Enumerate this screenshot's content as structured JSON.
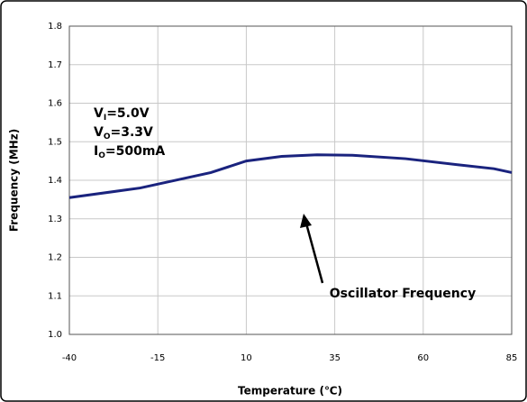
{
  "chart_data": {
    "type": "line",
    "x_label": "Temperature (℃)",
    "y_label": "Frequency (MHz)",
    "x": [
      -40,
      -20,
      0,
      10,
      20,
      30,
      40,
      55,
      70,
      80,
      85
    ],
    "series": [
      {
        "name": "Oscillator Frequency",
        "color": "#1a237e",
        "values": [
          1.355,
          1.38,
          1.42,
          1.45,
          1.462,
          1.466,
          1.465,
          1.456,
          1.44,
          1.43,
          1.42
        ]
      }
    ],
    "xlim": [
      -40,
      85
    ],
    "xticks": [
      -40,
      -15,
      10,
      35,
      60,
      85
    ],
    "ylim": [
      1.0,
      1.8
    ],
    "yticks": [
      {
        "value": 1,
        "label": "1.0"
      },
      1.1,
      1.2,
      1.3,
      1.4,
      1.5,
      1.6,
      1.7,
      1.8
    ],
    "grid": true,
    "conditions": [
      {
        "symbol": "V",
        "sub": "I",
        "rest": "=5.0V"
      },
      {
        "symbol": "V",
        "sub": "O",
        "rest": "=3.3V"
      },
      {
        "symbol": "I",
        "sub": "O",
        "rest": "=500mA"
      }
    ]
  }
}
